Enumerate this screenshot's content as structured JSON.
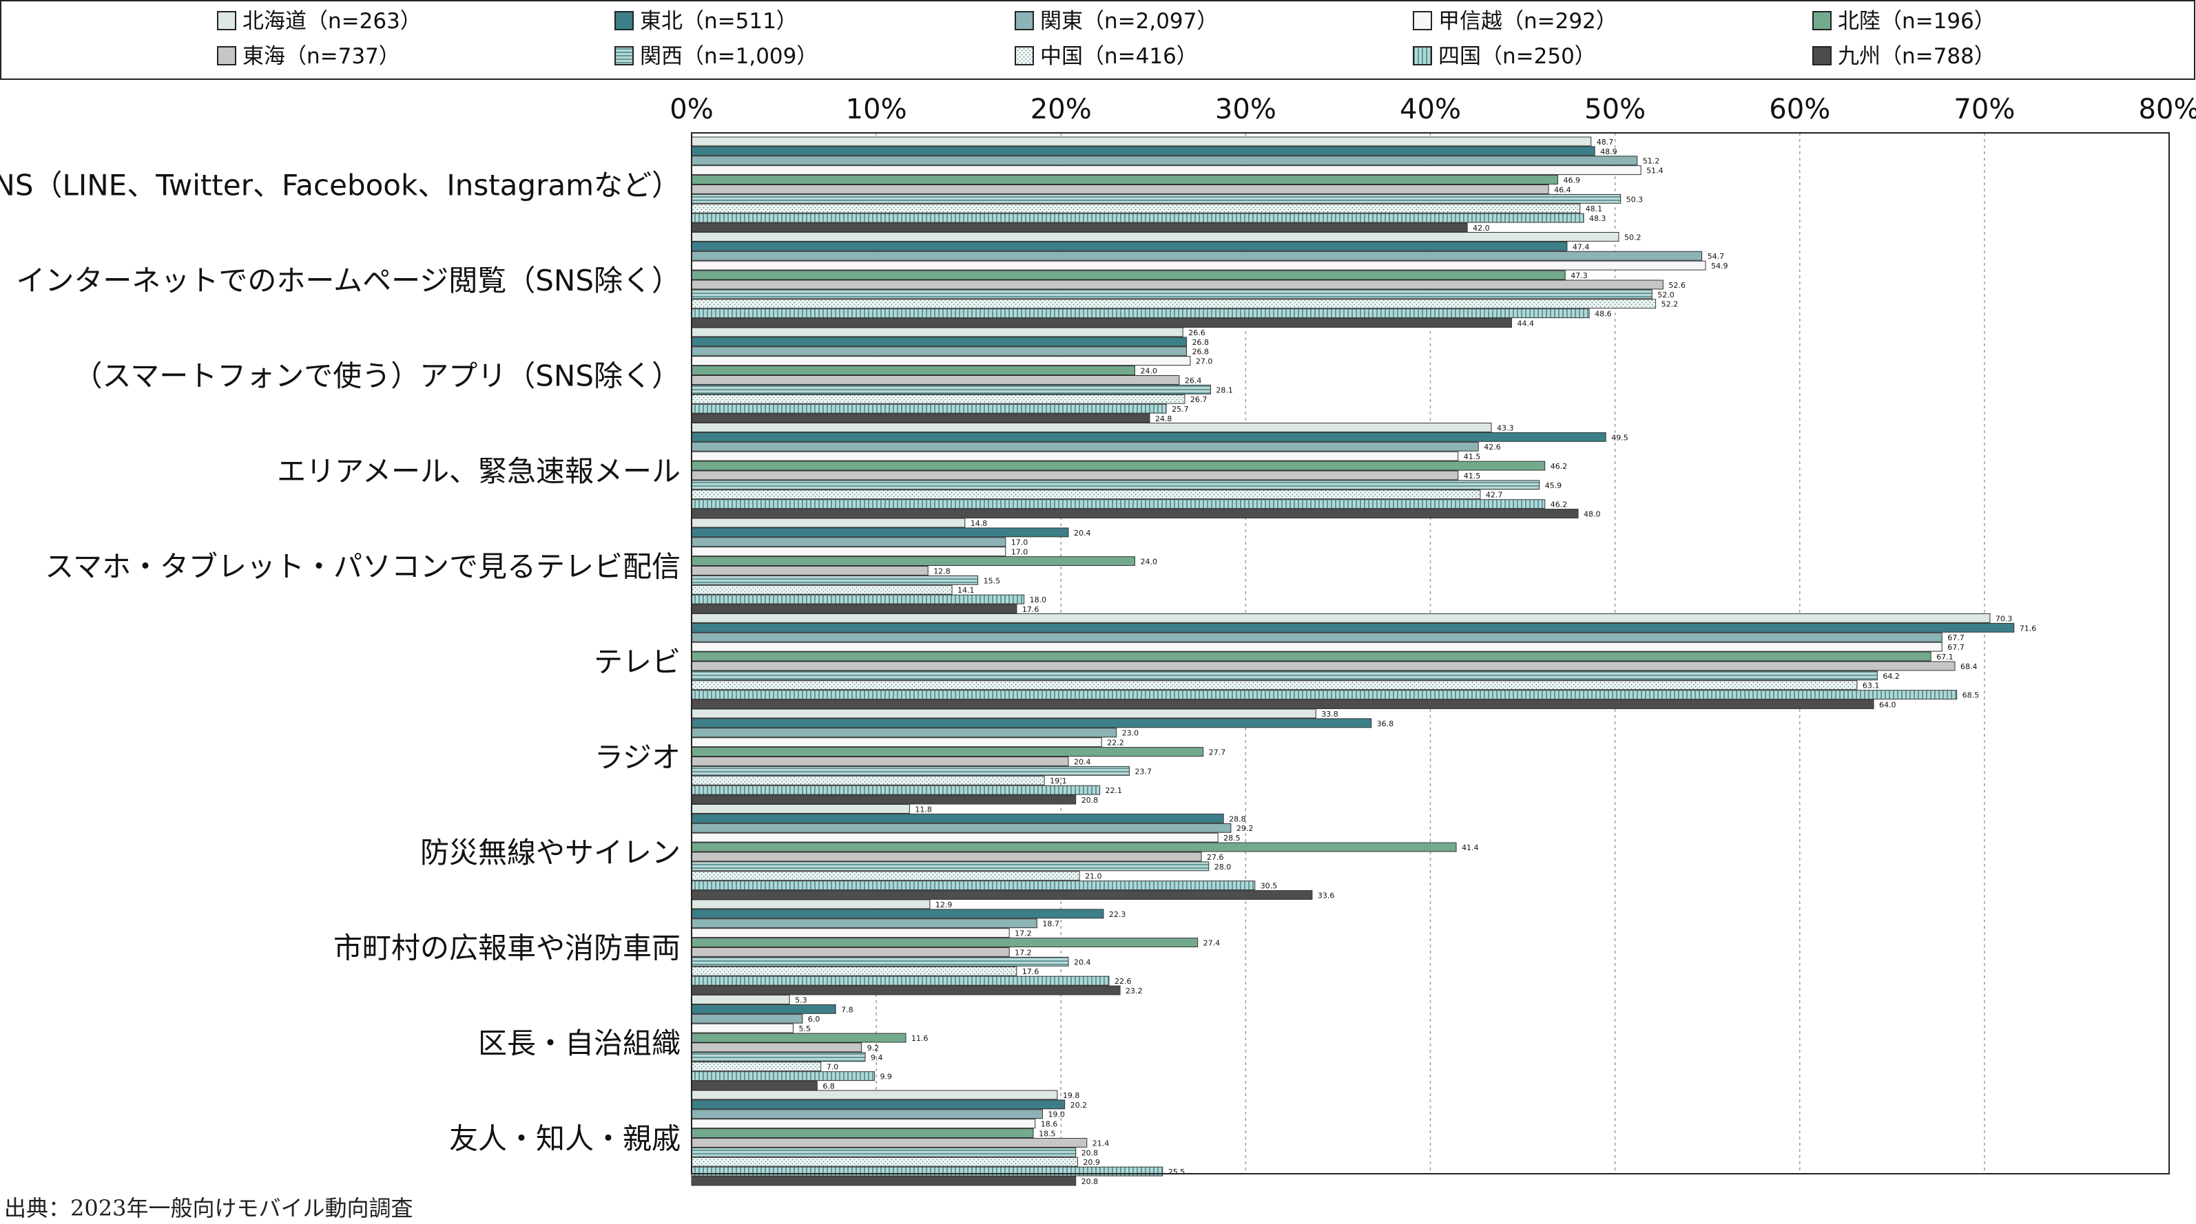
{
  "chart_data": {
    "type": "bar",
    "orientation": "horizontal",
    "title": "",
    "xlabel": "",
    "ylabel": "",
    "xlim": [
      0,
      80
    ],
    "x_ticks": [
      "0%",
      "10%",
      "20%",
      "30%",
      "40%",
      "50%",
      "60%",
      "70%",
      "80%"
    ],
    "grid": "vertical dotted",
    "legend_position": "top",
    "categories": [
      "SNS（LINE、Twitter、Facebook、Instagramなど）",
      "インターネットでのホームページ閲覧（SNS除く）",
      "（スマートフォンで使う）アプリ（SNS除く）",
      "エリアメール、緊急速報メール",
      "スマホ・タブレット・パソコンで見るテレビ配信",
      "テレビ",
      "ラジオ",
      "防災無線やサイレン",
      "市町村の広報車や消防車両",
      "区長・自治組織",
      "友人・知人・親戚"
    ],
    "series": [
      {
        "name": "北海道（n=263）",
        "color": "#dde8e4",
        "pattern": "solid",
        "values": [
          48.7,
          50.2,
          26.6,
          43.3,
          14.8,
          70.3,
          33.8,
          11.8,
          12.9,
          5.3,
          19.8
        ]
      },
      {
        "name": "東北（n=511）",
        "color": "#3c7f88",
        "pattern": "solid",
        "values": [
          48.9,
          47.4,
          26.8,
          49.5,
          20.4,
          71.6,
          36.8,
          28.8,
          22.3,
          7.8,
          20.2
        ]
      },
      {
        "name": "関東（n=2,097）",
        "color": "#8cb3b6",
        "pattern": "solid",
        "values": [
          51.2,
          54.7,
          26.8,
          42.6,
          17.0,
          67.7,
          23.0,
          29.2,
          18.7,
          6.0,
          19.0
        ]
      },
      {
        "name": "甲信越（n=292）",
        "color": "#f7f7f7",
        "pattern": "solid",
        "values": [
          51.4,
          54.9,
          27.0,
          41.5,
          17.0,
          67.7,
          22.2,
          28.5,
          17.2,
          5.5,
          18.6
        ]
      },
      {
        "name": "北陸（n=196）",
        "color": "#73aa8d",
        "pattern": "solid",
        "values": [
          46.9,
          47.3,
          24.0,
          46.2,
          24.0,
          67.1,
          27.7,
          41.4,
          27.4,
          11.6,
          18.5
        ]
      },
      {
        "name": "東海（n=737）",
        "color": "#c6c6c6",
        "pattern": "solid",
        "values": [
          46.4,
          52.6,
          26.4,
          41.5,
          12.8,
          68.4,
          20.4,
          27.6,
          17.2,
          9.2,
          21.4
        ]
      },
      {
        "name": "関西（n=1,009）",
        "color": "#aac8c8",
        "pattern": "hlines",
        "values": [
          50.3,
          52.0,
          28.1,
          45.9,
          15.5,
          64.2,
          23.7,
          28.0,
          20.4,
          9.4,
          20.8
        ]
      },
      {
        "name": "中国（n=416）",
        "color": "#e9f2f2",
        "pattern": "dots",
        "values": [
          48.1,
          52.2,
          26.7,
          42.7,
          14.1,
          63.1,
          19.1,
          21.0,
          17.6,
          7.0,
          20.9
        ]
      },
      {
        "name": "四国（n=250）",
        "color": "#9ccaca",
        "pattern": "vlines",
        "values": [
          48.3,
          48.6,
          25.7,
          46.2,
          18.0,
          68.5,
          22.1,
          30.5,
          22.6,
          9.9,
          25.5
        ]
      },
      {
        "name": "九州（n=788）",
        "color": "#4d4d4d",
        "pattern": "solid",
        "values": [
          42.0,
          44.4,
          24.8,
          48.0,
          17.6,
          64.0,
          20.8,
          33.6,
          23.2,
          6.8,
          20.8
        ]
      }
    ]
  },
  "source_note": "出典：2023年一般向けモバイル動向調査"
}
